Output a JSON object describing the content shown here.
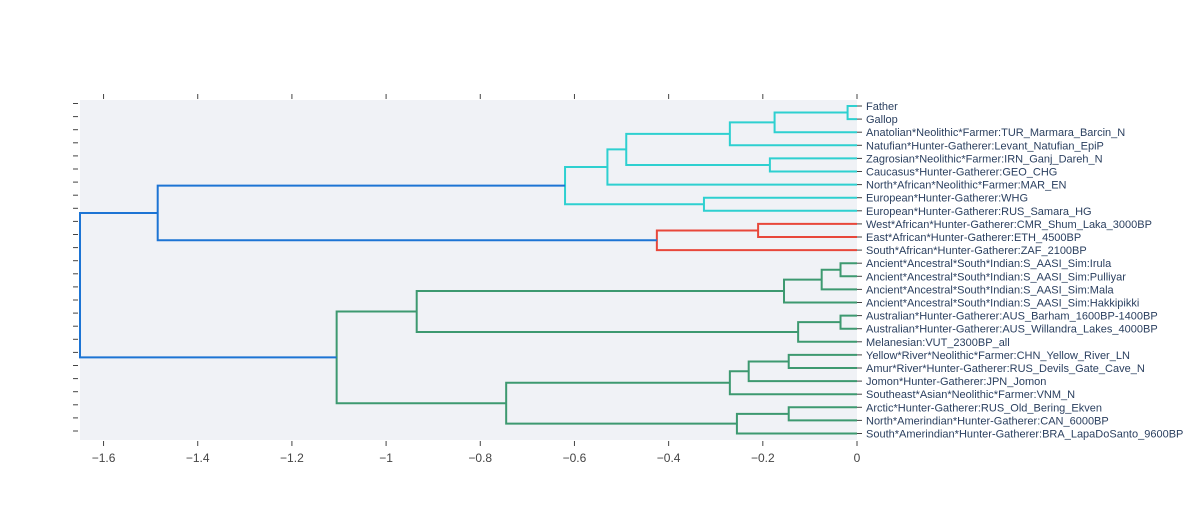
{
  "chart_data": {
    "type": "dendrogram",
    "orientation": "left",
    "title": "",
    "xlabel": "",
    "ylabel": "",
    "xlim": [
      -1.65,
      0
    ],
    "x_ticks": [
      -1.6,
      -1.4,
      -1.2,
      -1,
      -0.8,
      -0.6,
      -0.4,
      -0.2,
      0
    ],
    "x_tick_labels": [
      "−1.6",
      "−1.4",
      "−1.2",
      "−1",
      "−0.8",
      "−0.6",
      "−0.4",
      "−0.2",
      "0"
    ],
    "grid": false,
    "colors": {
      "cyan": "#2ed0d0",
      "red": "#e8473a",
      "green": "#3d9970",
      "blue": "#1c74d4",
      "plot_bg": "#f0f2f6",
      "tick": "#444444",
      "label": "#2a3f5f"
    },
    "leaves": [
      "Father",
      "Gallop",
      "Anatolian*Neolithic*Farmer:TUR_Marmara_Barcin_N",
      "Natufian*Hunter-Gatherer:Levant_Natufian_EpiP",
      "Zagrosian*Neolithic*Farmer:IRN_Ganj_Dareh_N",
      "Caucasus*Hunter-Gatherer:GEO_CHG",
      "North*African*Neolithic*Farmer:MAR_EN",
      "European*Hunter-Gatherer:WHG",
      "European*Hunter-Gatherer:RUS_Samara_HG",
      "West*African*Hunter-Gatherer:CMR_Shum_Laka_3000BP",
      "East*African*Hunter-Gatherer:ETH_4500BP",
      "South*African*Hunter-Gatherer:ZAF_2100BP",
      "Ancient*Ancestral*South*Indian:S_AASI_Sim:Irula",
      "Ancient*Ancestral*South*Indian:S_AASI_Sim:Pulliyar",
      "Ancient*Ancestral*South*Indian:S_AASI_Sim:Mala",
      "Ancient*Ancestral*South*Indian:S_AASI_Sim:Hakkipikki",
      "Australian*Hunter-Gatherer:AUS_Barham_1600BP-1400BP",
      "Australian*Hunter-Gatherer:AUS_Willandra_Lakes_4000BP",
      "Melanesian:VUT_2300BP_all",
      "Yellow*River*Neolithic*Farmer:CHN_Yellow_River_LN",
      "Amur*River*Hunter-Gatherer:RUS_Devils_Gate_Cave_N",
      "Jomon*Hunter-Gatherer:JPN_Jomon",
      "Southeast*Asian*Neolithic*Farmer:VNM_N",
      "Arctic*Hunter-Gatherer:RUS_Old_Bering_Ekven",
      "North*Amerindian*Hunter-Gatherer:CAN_6000BP",
      "South*Amerindian*Hunter-Gatherer:BRA_LapaDoSanto_9600BP"
    ],
    "merges": [
      {
        "id": "n1",
        "a": "L0",
        "b": "L1",
        "height": -0.02,
        "color": "cyan"
      },
      {
        "id": "n2",
        "a": "n1",
        "b": "L2",
        "height": -0.175,
        "color": "cyan"
      },
      {
        "id": "n3",
        "a": "n2",
        "b": "L3",
        "height": -0.27,
        "color": "cyan"
      },
      {
        "id": "n4",
        "a": "L4",
        "b": "L5",
        "height": -0.185,
        "color": "cyan"
      },
      {
        "id": "n5",
        "a": "n3",
        "b": "n4",
        "height": -0.49,
        "color": "cyan"
      },
      {
        "id": "n6",
        "a": "n5",
        "b": "L6",
        "height": -0.53,
        "color": "cyan"
      },
      {
        "id": "n7",
        "a": "L7",
        "b": "L8",
        "height": -0.325,
        "color": "cyan"
      },
      {
        "id": "n8",
        "a": "n6",
        "b": "n7",
        "height": -0.62,
        "color": "cyan"
      },
      {
        "id": "n9",
        "a": "L9",
        "b": "L10",
        "height": -0.21,
        "color": "red"
      },
      {
        "id": "n10",
        "a": "n9",
        "b": "L11",
        "height": -0.425,
        "color": "red"
      },
      {
        "id": "n11",
        "a": "n8",
        "b": "n10",
        "height": -1.485,
        "color": "blue"
      },
      {
        "id": "n12",
        "a": "L12",
        "b": "L13",
        "height": -0.035,
        "color": "green"
      },
      {
        "id": "n13",
        "a": "n12",
        "b": "L14",
        "height": -0.075,
        "color": "green"
      },
      {
        "id": "n14",
        "a": "n13",
        "b": "L15",
        "height": -0.155,
        "color": "green"
      },
      {
        "id": "n15",
        "a": "L16",
        "b": "L17",
        "height": -0.035,
        "color": "green"
      },
      {
        "id": "n16",
        "a": "n15",
        "b": "L18",
        "height": -0.125,
        "color": "green"
      },
      {
        "id": "n17",
        "a": "n14",
        "b": "n16",
        "height": -0.935,
        "color": "green"
      },
      {
        "id": "n18",
        "a": "L19",
        "b": "L20",
        "height": -0.145,
        "color": "green"
      },
      {
        "id": "n19",
        "a": "n18",
        "b": "L21",
        "height": -0.23,
        "color": "green"
      },
      {
        "id": "n20",
        "a": "n19",
        "b": "L22",
        "height": -0.27,
        "color": "green"
      },
      {
        "id": "n21",
        "a": "L23",
        "b": "L24",
        "height": -0.145,
        "color": "green"
      },
      {
        "id": "n22",
        "a": "n21",
        "b": "L25",
        "height": -0.255,
        "color": "green"
      },
      {
        "id": "n23",
        "a": "n20",
        "b": "n22",
        "height": -0.745,
        "color": "green"
      },
      {
        "id": "n24",
        "a": "n17",
        "b": "n23",
        "height": -1.105,
        "color": "green"
      },
      {
        "id": "n25",
        "a": "n11",
        "b": "n24",
        "height": -1.65,
        "color": "blue"
      }
    ]
  }
}
